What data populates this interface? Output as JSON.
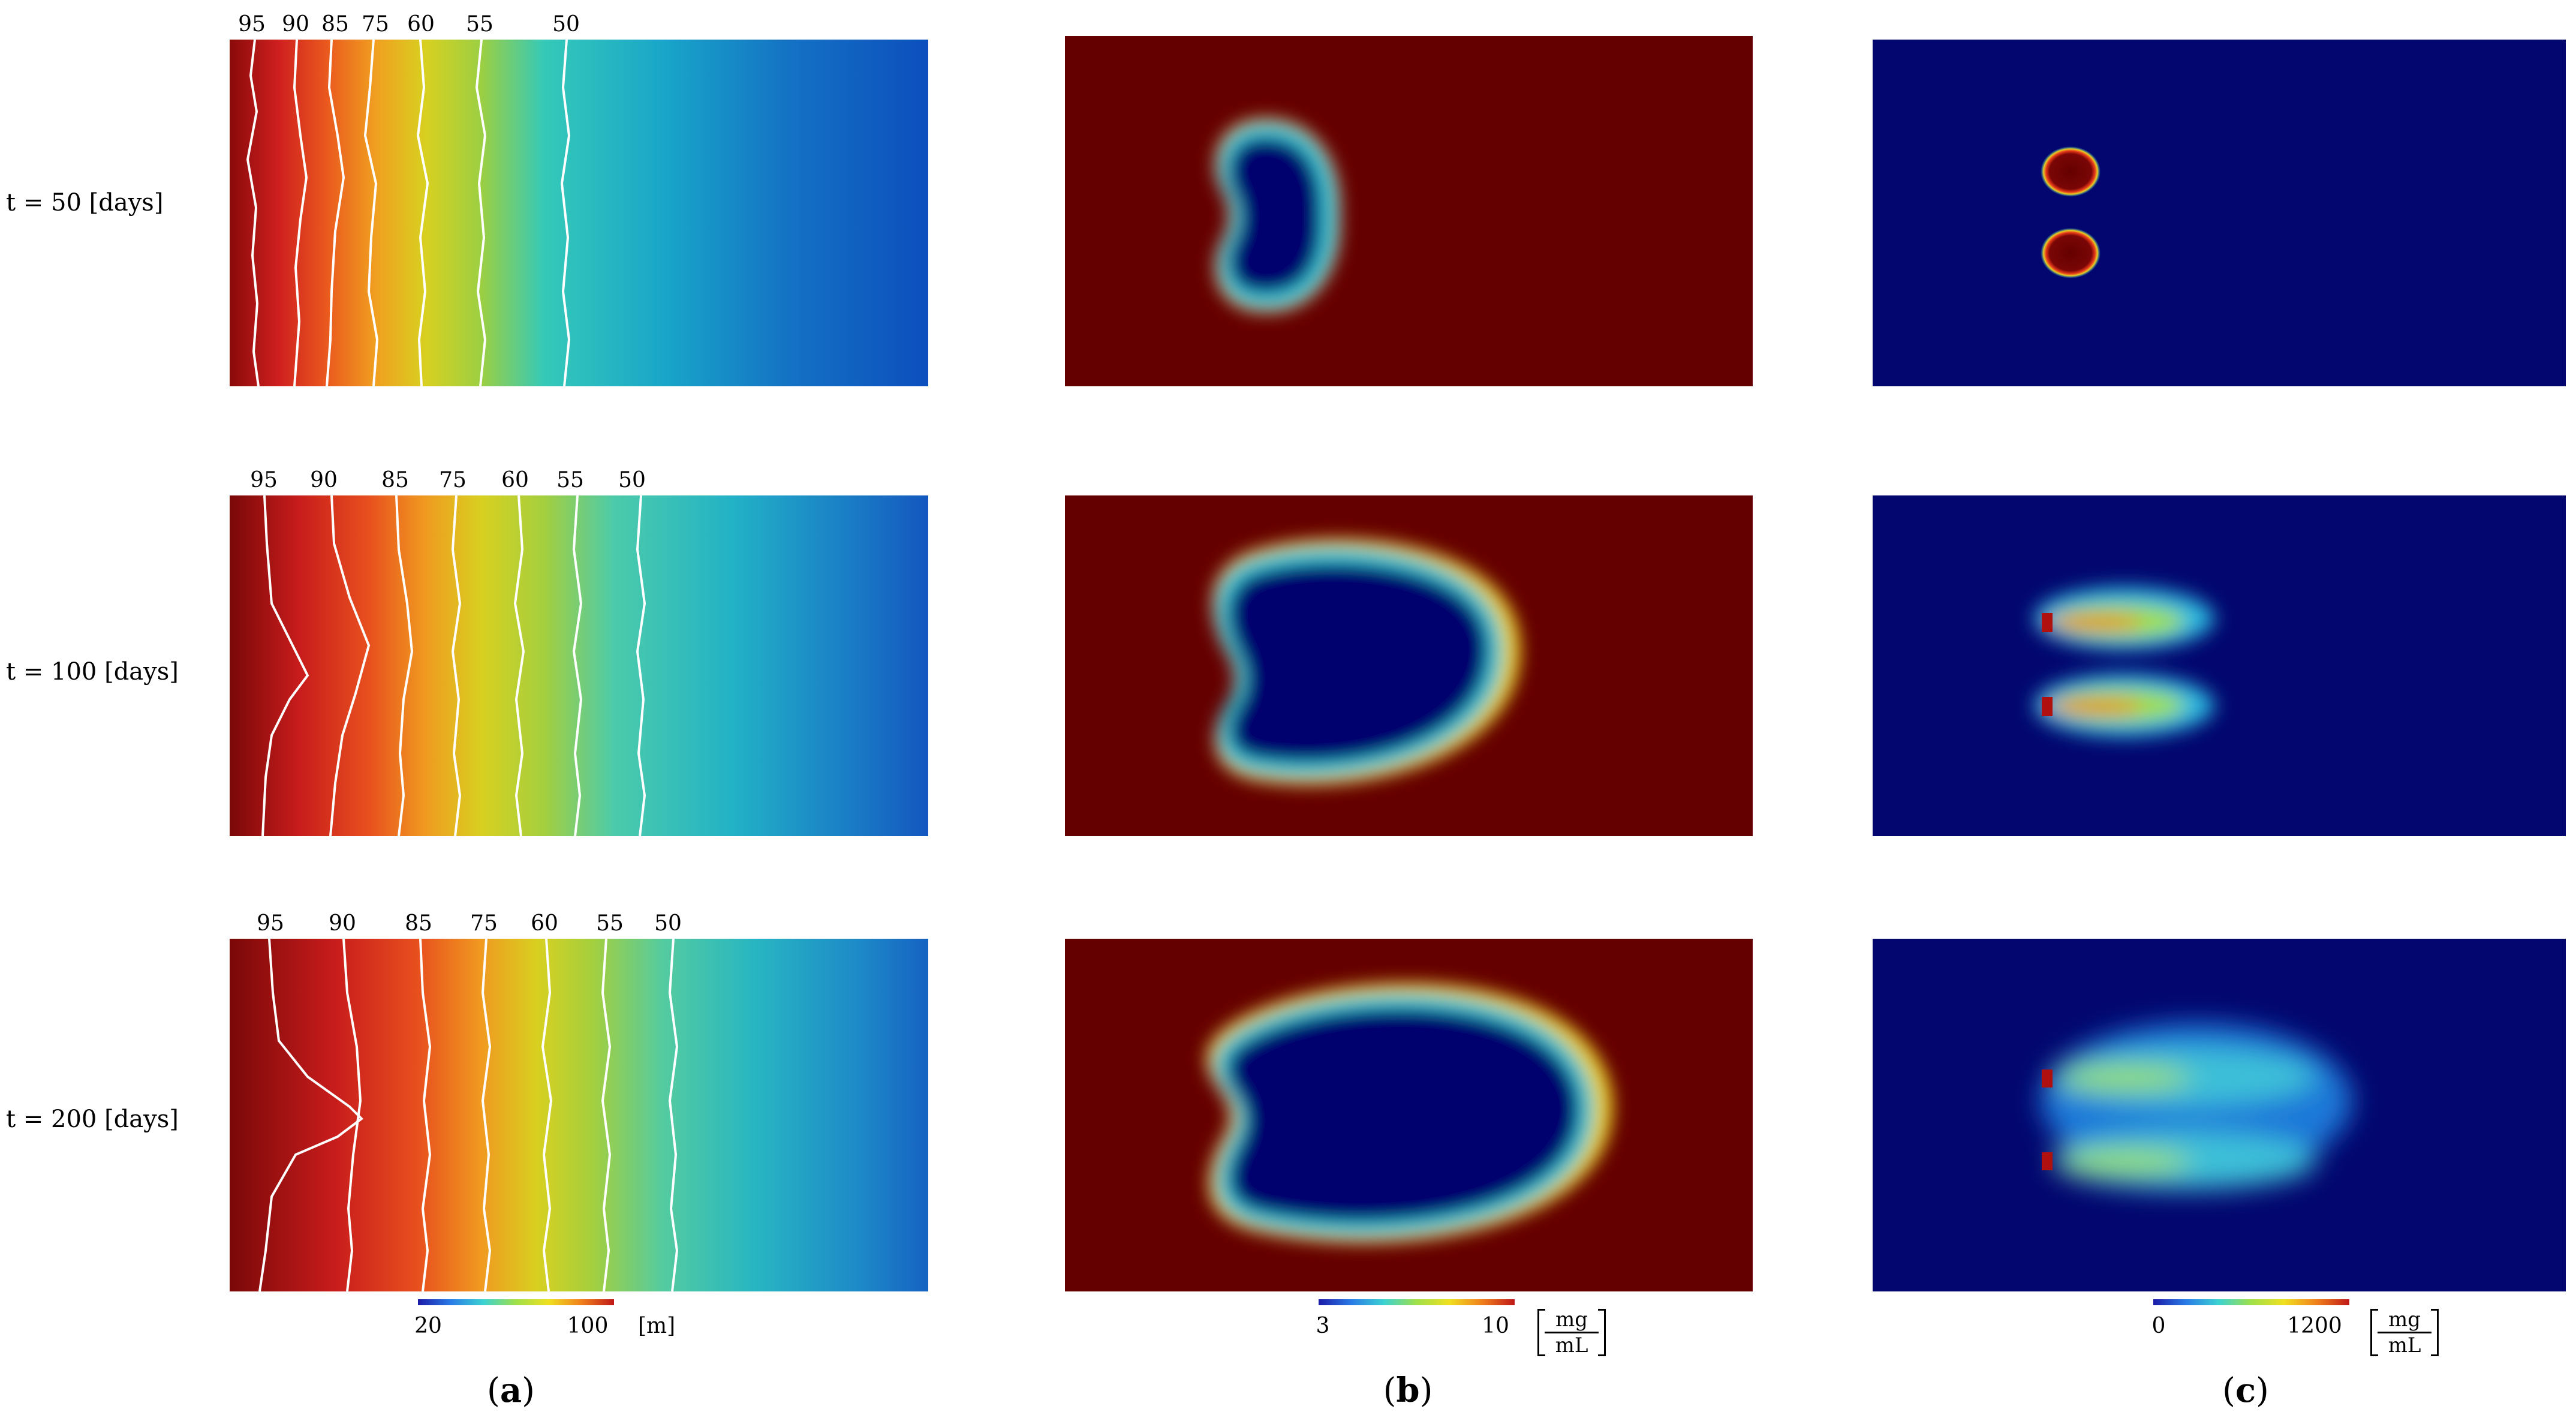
{
  "rows": [
    {
      "time_label": "t = 50 [days]",
      "contours": [
        "95",
        "90",
        "85",
        "75",
        "60",
        "55",
        "50"
      ]
    },
    {
      "time_label": "t = 100 [days]",
      "contours": [
        "95",
        "90",
        "85",
        "75",
        "60",
        "55",
        "50"
      ]
    },
    {
      "time_label": "t = 200 [days]",
      "contours": [
        "95",
        "90",
        "85",
        "75",
        "60",
        "55",
        "50"
      ]
    }
  ],
  "colorbars": {
    "a": {
      "min": "20",
      "max": "100",
      "unit": "[m]"
    },
    "b": {
      "min": "3",
      "max": "10",
      "unit_num": "mg",
      "unit_den": "mL"
    },
    "c": {
      "min": "0",
      "max": "1200",
      "unit_num": "mg",
      "unit_den": "mL"
    }
  },
  "sublabels": {
    "a": "a",
    "b": "b",
    "c": "c"
  },
  "colors": {
    "deep_red": "#650000",
    "deep_blue": "#02066e",
    "white": "#ffffff"
  }
}
